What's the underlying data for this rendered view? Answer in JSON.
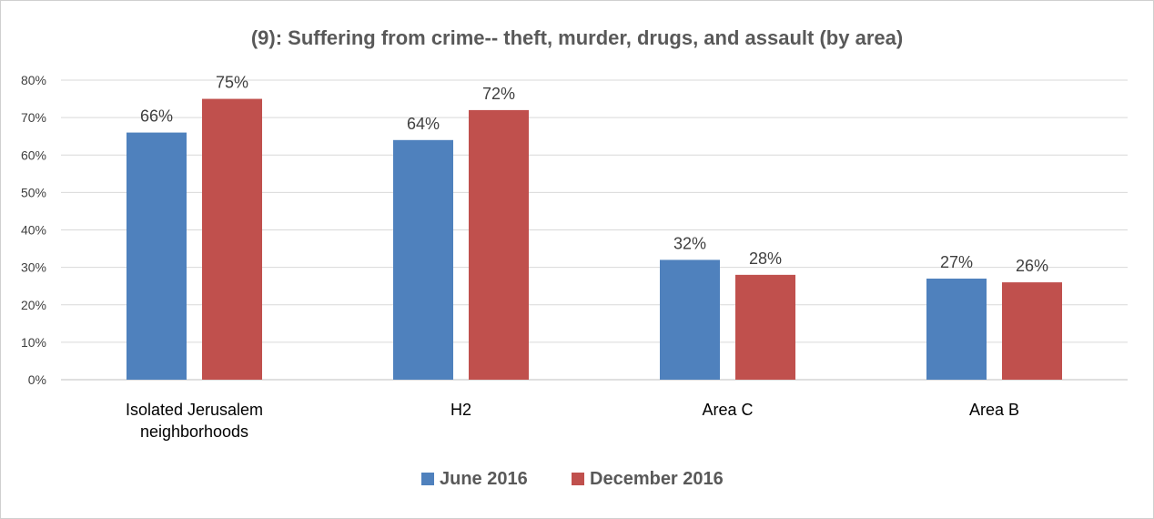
{
  "chart_data": {
    "type": "bar",
    "title": "(9): Suffering from crime-- theft, murder, drugs, and assault (by area)",
    "xlabel": "",
    "ylabel": "",
    "categories": [
      [
        "Isolated Jerusalem",
        "neighborhoods"
      ],
      [
        "H2"
      ],
      [
        "Area C"
      ],
      [
        "Area B"
      ]
    ],
    "series": [
      {
        "name": "June 2016",
        "color": "#4f81bd",
        "values": [
          66,
          64,
          32,
          27
        ]
      },
      {
        "name": "December 2016",
        "color": "#c0504d",
        "values": [
          75,
          72,
          28,
          26
        ]
      }
    ],
    "ylim": [
      0,
      80
    ],
    "yticks": [
      0,
      10,
      20,
      30,
      40,
      50,
      60,
      70,
      80
    ],
    "tick_suffix": "%",
    "data_label_suffix": "%",
    "grid": true,
    "legend_position": "bottom"
  }
}
